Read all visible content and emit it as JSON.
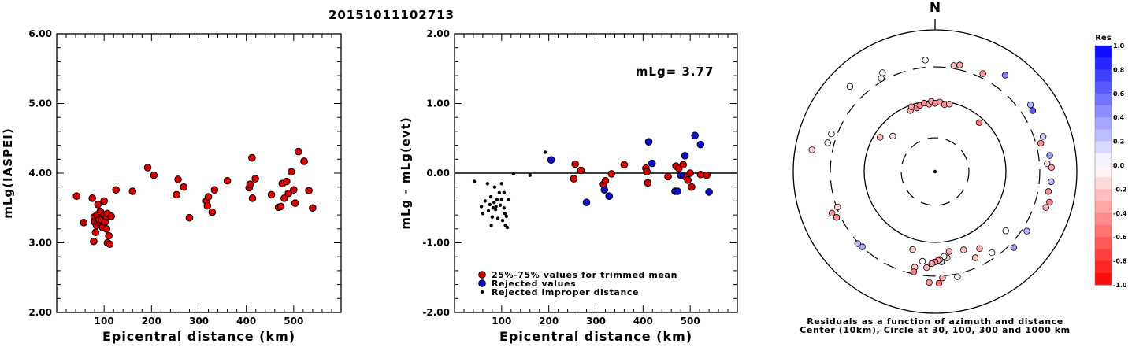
{
  "event_id": "20151011102713",
  "chart_data": [
    {
      "type": "scatter",
      "ylabel": "mLg(IASPEI)",
      "xlabel": "Epicentral distance (km)",
      "xlim": [
        0,
        600
      ],
      "ylim": [
        2.0,
        6.0
      ],
      "xticks": [
        "100",
        "200",
        "300",
        "400",
        "500"
      ],
      "yticks": [
        "2.00",
        "3.00",
        "4.00",
        "5.00",
        "6.00"
      ],
      "series": [
        {
          "color": "#dd0000",
          "points": [
            [
              42,
              3.67
            ],
            [
              57,
              3.29
            ],
            [
              75,
              3.64
            ],
            [
              78,
              3.02
            ],
            [
              79,
              3.37
            ],
            [
              80,
              3.3
            ],
            [
              82,
              3.15
            ],
            [
              84,
              3.25
            ],
            [
              85,
              3.4
            ],
            [
              87,
              3.55
            ],
            [
              88,
              3.3
            ],
            [
              90,
              3.33
            ],
            [
              92,
              3.45
            ],
            [
              95,
              3.33
            ],
            [
              97,
              3.22
            ],
            [
              100,
              3.4
            ],
            [
              100,
              3.6
            ],
            [
              102,
              3.3
            ],
            [
              105,
              3.38
            ],
            [
              105,
              3.2
            ],
            [
              107,
              3.42
            ],
            [
              107,
              3.0
            ],
            [
              110,
              3.1
            ],
            [
              112,
              2.98
            ],
            [
              115,
              3.38
            ],
            [
              125,
              3.76
            ],
            [
              160,
              3.74
            ],
            [
              192,
              4.08
            ],
            [
              205,
              3.97
            ],
            [
              253,
              3.69
            ],
            [
              256,
              3.91
            ],
            [
              268,
              3.8
            ],
            [
              280,
              3.36
            ],
            [
              316,
              3.6
            ],
            [
              318,
              3.53
            ],
            [
              320,
              3.66
            ],
            [
              328,
              3.44
            ],
            [
              333,
              3.76
            ],
            [
              360,
              3.89
            ],
            [
              406,
              3.79
            ],
            [
              408,
              3.84
            ],
            [
              412,
              4.22
            ],
            [
              413,
              3.64
            ],
            [
              419,
              3.92
            ],
            [
              453,
              3.69
            ],
            [
              468,
              3.51
            ],
            [
              473,
              3.52
            ],
            [
              476,
              3.85
            ],
            [
              480,
              3.64
            ],
            [
              485,
              3.88
            ],
            [
              489,
              3.71
            ],
            [
              495,
              4.02
            ],
            [
              500,
              3.76
            ],
            [
              503,
              3.57
            ],
            [
              510,
              4.31
            ],
            [
              522,
              4.17
            ],
            [
              532,
              3.75
            ],
            [
              540,
              3.5
            ]
          ]
        }
      ]
    },
    {
      "type": "scatter",
      "ylabel": "mLg - mLg(evt)",
      "xlabel": "Epicentral distance (km)",
      "xlim": [
        0,
        600
      ],
      "ylim": [
        -2.0,
        2.0
      ],
      "xticks": [
        "100",
        "200",
        "300",
        "400",
        "500"
      ],
      "yticks": [
        "-2.00",
        "-1.00",
        "0.00",
        "1.00",
        "2.00"
      ],
      "annotation": "mLg= 3.77",
      "reference_line": 0.0,
      "legend": {
        "placement": "bottom-left",
        "entries": [
          {
            "label": "25%-75% values for trimmed mean",
            "color": "#dd0000",
            "marker": "large"
          },
          {
            "label": "Rejected values",
            "color": "#1010cc",
            "marker": "large"
          },
          {
            "label": "Rejected improper distance",
            "color": "#000000",
            "marker": "small"
          }
        ]
      },
      "series": [
        {
          "label_ref": 0,
          "color": "#dd0000",
          "points": [
            [
              253,
              -0.08
            ],
            [
              256,
              0.13
            ],
            [
              268,
              0.04
            ],
            [
              316,
              -0.16
            ],
            [
              320,
              -0.11
            ],
            [
              333,
              -0.01
            ],
            [
              360,
              0.12
            ],
            [
              406,
              0.07
            ],
            [
              408,
              0.02
            ],
            [
              410,
              -0.14
            ],
            [
              453,
              -0.05
            ],
            [
              470,
              0.1
            ],
            [
              476,
              0.07
            ],
            [
              485,
              0.12
            ],
            [
              490,
              -0.05
            ],
            [
              495,
              -0.1
            ],
            [
              500,
              0.0
            ],
            [
              503,
              -0.2
            ],
            [
              522,
              -0.02
            ],
            [
              535,
              -0.03
            ]
          ]
        },
        {
          "label_ref": 1,
          "color": "#1010cc",
          "points": [
            [
              205,
              0.19
            ],
            [
              280,
              -0.42
            ],
            [
              318,
              -0.24
            ],
            [
              328,
              -0.33
            ],
            [
              412,
              0.45
            ],
            [
              419,
              0.14
            ],
            [
              468,
              -0.26
            ],
            [
              473,
              -0.26
            ],
            [
              480,
              -0.03
            ],
            [
              489,
              0.25
            ],
            [
              510,
              0.54
            ],
            [
              522,
              0.41
            ],
            [
              540,
              -0.27
            ]
          ]
        },
        {
          "label_ref": 2,
          "color": "#000000",
          "points": [
            [
              42,
              -0.12
            ],
            [
              57,
              -0.48
            ],
            [
              60,
              -0.58
            ],
            [
              65,
              -0.4
            ],
            [
              70,
              -0.15
            ],
            [
              72,
              -0.54
            ],
            [
              75,
              -0.45
            ],
            [
              77,
              -0.34
            ],
            [
              78,
              -0.75
            ],
            [
              80,
              -0.63
            ],
            [
              82,
              -0.5
            ],
            [
              84,
              -0.42
            ],
            [
              85,
              -0.2
            ],
            [
              87,
              -0.52
            ],
            [
              88,
              -0.48
            ],
            [
              90,
              -0.38
            ],
            [
              92,
              -0.65
            ],
            [
              95,
              -0.28
            ],
            [
              97,
              -0.46
            ],
            [
              100,
              -0.38
            ],
            [
              100,
              -0.15
            ],
            [
              102,
              -0.68
            ],
            [
              105,
              -0.5
            ],
            [
              105,
              -0.28
            ],
            [
              107,
              -0.58
            ],
            [
              108,
              -0.75
            ],
            [
              110,
              -0.62
            ],
            [
              112,
              -0.78
            ],
            [
              115,
              -0.38
            ],
            [
              125,
              -0.01
            ],
            [
              160,
              -0.03
            ],
            [
              192,
              0.3
            ]
          ]
        }
      ]
    },
    {
      "type": "scatter",
      "subtype": "polar",
      "north_label": "N",
      "caption": [
        "Residuals as a function of azimuth and distance",
        "Center (10km), Circle at 30, 100, 300 and 1000 km"
      ],
      "colorbar": {
        "title": "Res",
        "ticks": [
          "1.0",
          "0.8",
          "0.6",
          "0.4",
          "0.2",
          "0.0",
          "-0.2",
          "-0.4",
          "-0.6",
          "-0.8",
          "-1.0"
        ],
        "range": [
          -1.0,
          1.0
        ],
        "neg_color": "#ff0000",
        "pos_color": "#0000ff"
      },
      "points_az_dist_res": [
        [
          -22,
          85,
          -0.35
        ],
        [
          -20,
          94,
          -0.35
        ],
        [
          -16,
          86,
          -0.45
        ],
        [
          -13,
          91,
          -0.45
        ],
        [
          -9,
          95,
          -0.45
        ],
        [
          -5,
          90,
          -0.4
        ],
        [
          -3,
          98,
          -0.4
        ],
        [
          0,
          92,
          -0.45
        ],
        [
          4,
          96,
          -0.4
        ],
        [
          8,
          90,
          -0.4
        ],
        [
          12,
          94,
          -0.35
        ],
        [
          -58,
          82,
          -0.3
        ],
        [
          -50,
          60,
          -0.15
        ],
        [
          42,
          85,
          -0.55
        ],
        [
          -5,
          380,
          0.0
        ],
        [
          10,
          330,
          -0.25
        ],
        [
          13,
          350,
          -0.35
        ],
        [
          26,
          345,
          -0.4
        ],
        [
          36,
          480,
          0.5
        ],
        [
          -30,
          330,
          -0.05
        ],
        [
          -28,
          380,
          -0.05
        ],
        [
          -45,
          500,
          0.0
        ],
        [
          -70,
          360,
          0.05
        ],
        [
          58,
          420,
          0.65
        ],
        [
          55,
          440,
          0.3
        ],
        [
          75,
          350,
          -0.45
        ],
        [
          72,
          400,
          0.2
        ],
        [
          82,
          430,
          0.4
        ],
        [
          86,
          385,
          -0.15
        ],
        [
          88,
          440,
          -0.35
        ],
        [
          95,
          440,
          0.25
        ],
        [
          100,
          420,
          -0.4
        ],
        [
          108,
          440,
          -0.25
        ],
        [
          105,
          470,
          -0.5
        ],
        [
          130,
          200,
          0.0
        ],
        [
          150,
          180,
          -0.35
        ],
        [
          155,
          220,
          -0.25
        ],
        [
          160,
          150,
          -0.25
        ],
        [
          170,
          140,
          -0.35
        ],
        [
          172,
          170,
          -0.15
        ],
        [
          174,
          160,
          0.0
        ],
        [
          176,
          190,
          0.15
        ],
        [
          177,
          175,
          -0.45
        ],
        [
          178,
          180,
          -0.4
        ],
        [
          180,
          190,
          -0.5
        ],
        [
          182,
          200,
          -0.35
        ],
        [
          185,
          230,
          -0.3
        ],
        [
          188,
          190,
          0.0
        ],
        [
          192,
          240,
          -0.2
        ],
        [
          196,
          140,
          -0.2
        ],
        [
          192,
          280,
          -0.5
        ],
        [
          176,
          320,
          -0.35
        ],
        [
          178,
          380,
          -0.55
        ],
        [
          183,
          370,
          -0.4
        ],
        [
          145,
          250,
          0.0
        ],
        [
          123,
          350,
          0.3
        ],
        [
          134,
          350,
          0.4
        ],
        [
          168,
          330,
          0.05
        ],
        [
          224,
          300,
          0.35
        ],
        [
          227,
          310,
          0.25
        ],
        [
          250,
          290,
          -0.15
        ],
        [
          245,
          340,
          -0.45
        ],
        [
          248,
          370,
          -0.4
        ],
        [
          285,
          370,
          -0.05
        ],
        [
          280,
          580,
          -0.2
        ]
      ]
    }
  ]
}
